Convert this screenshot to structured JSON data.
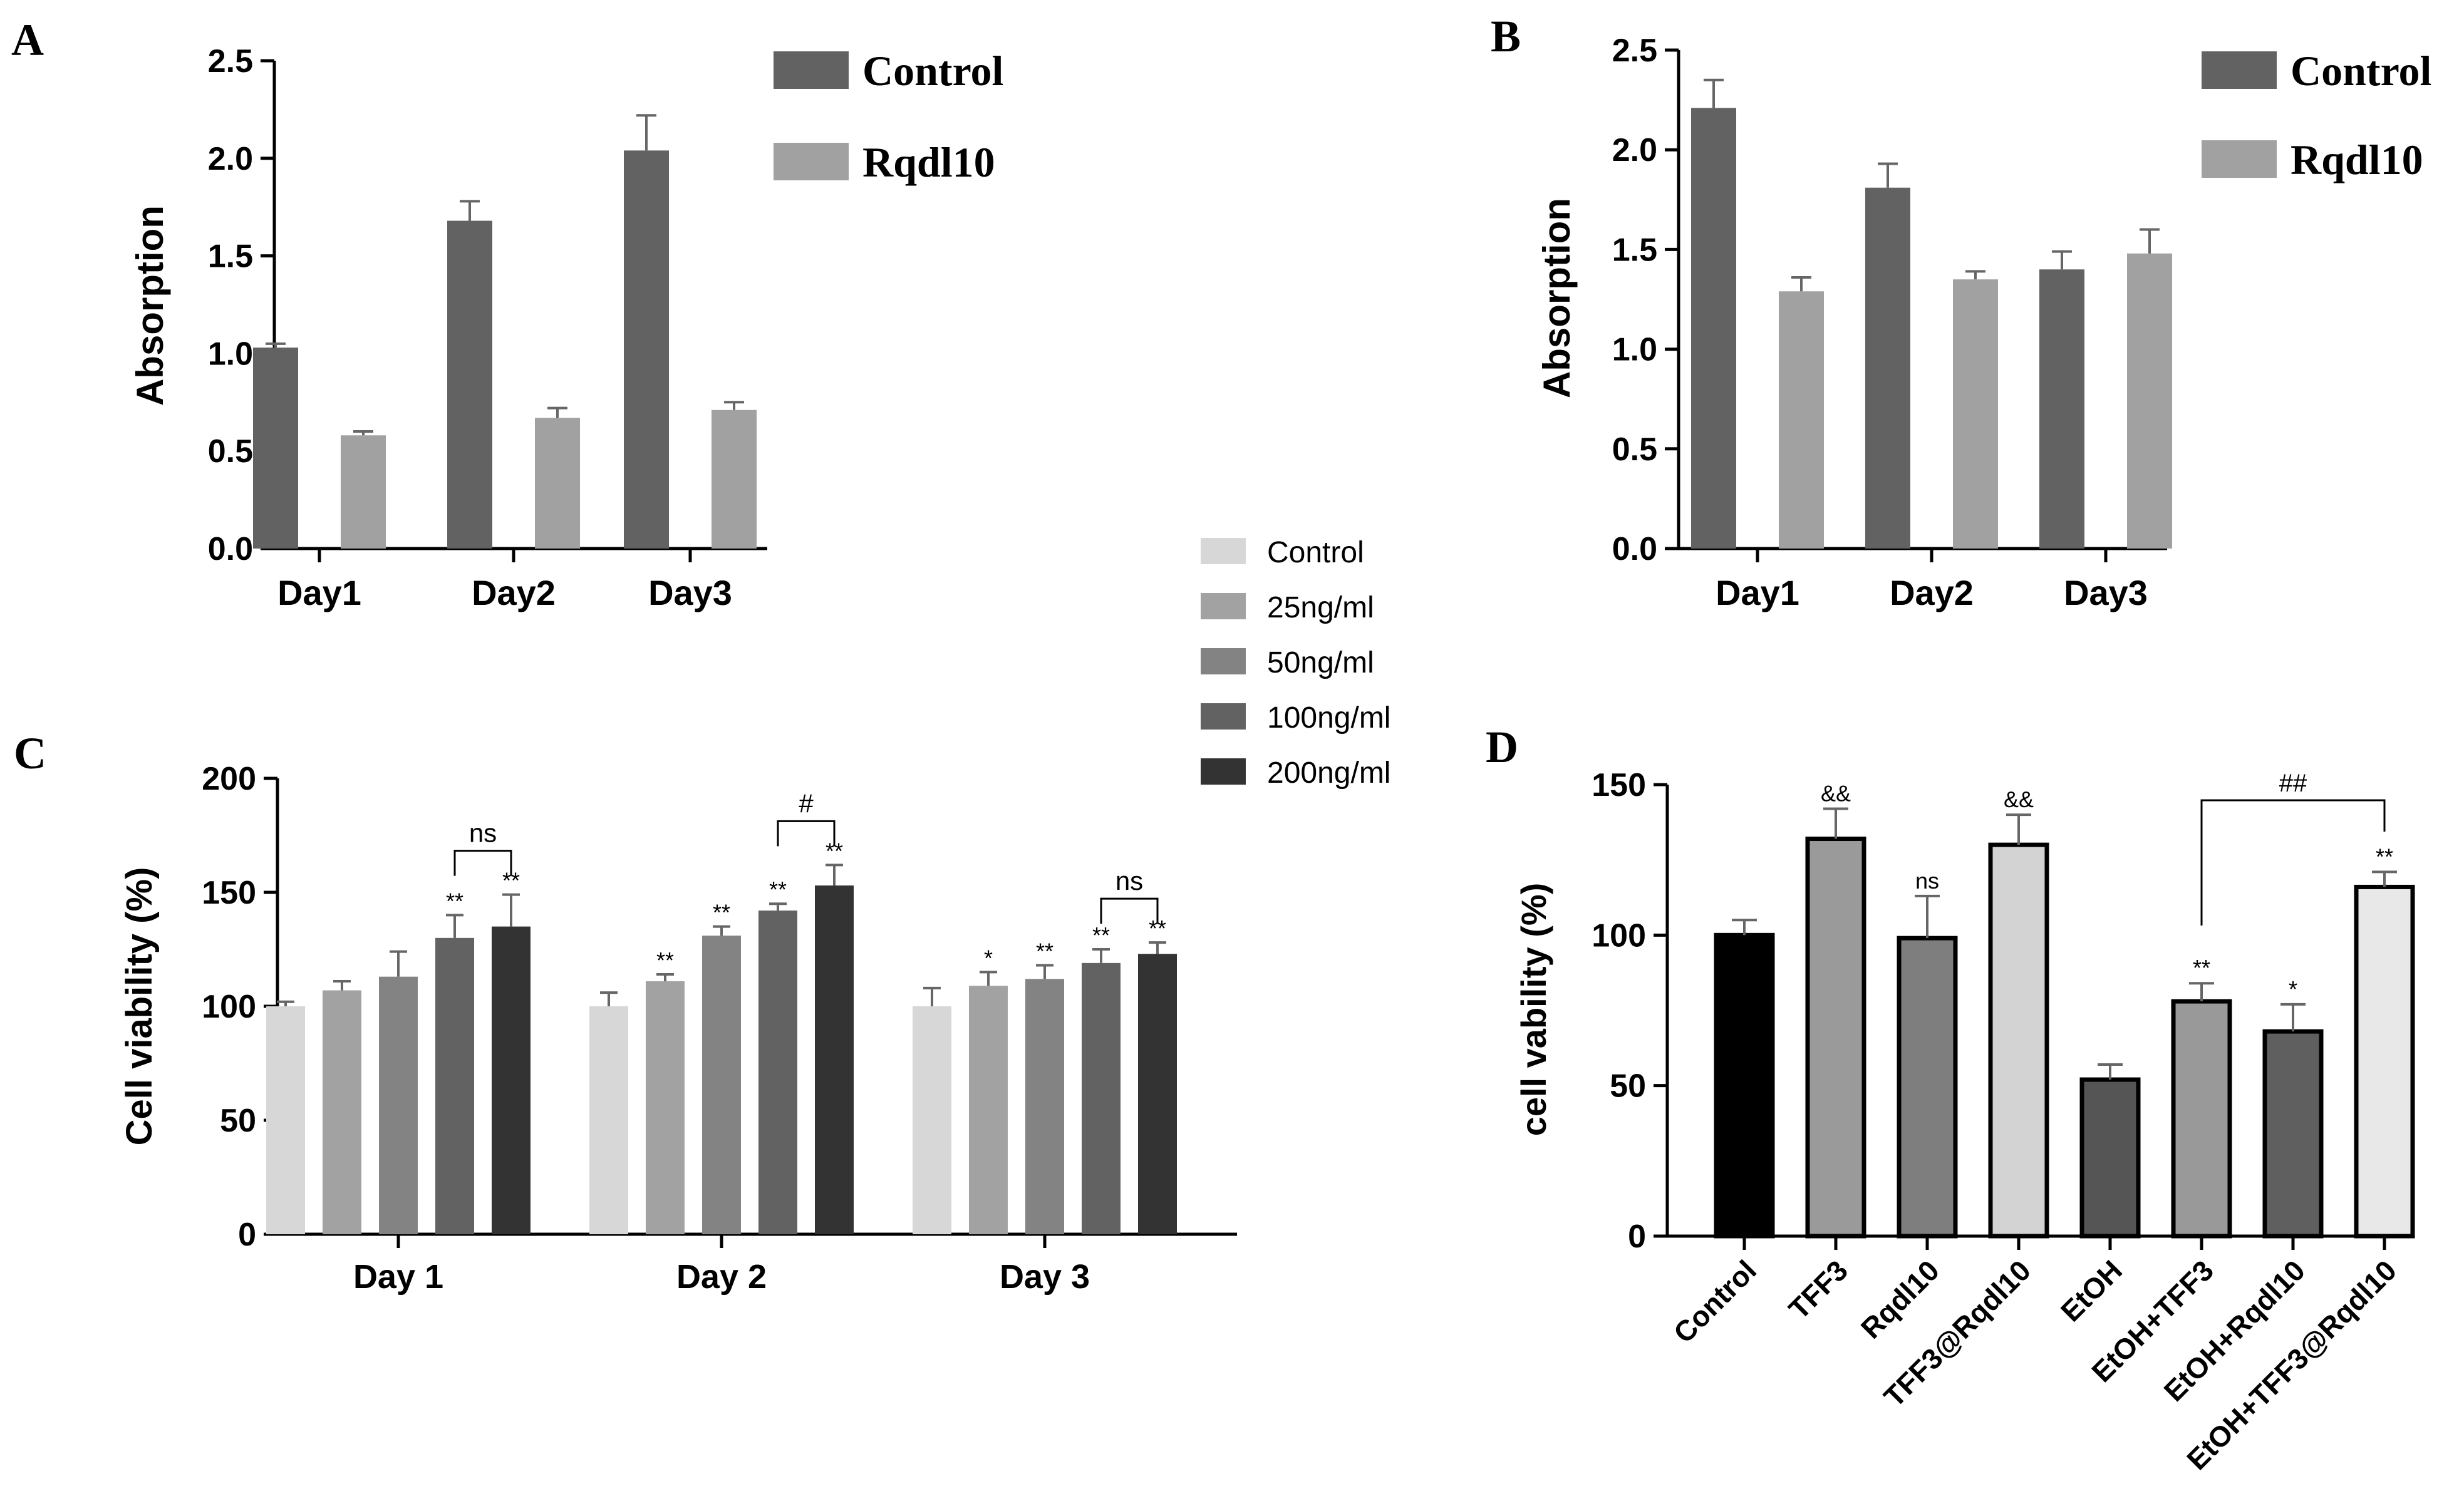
{
  "figure": {
    "panel_labels": [
      "A",
      "B",
      "C",
      "D"
    ]
  },
  "chart_data": [
    {
      "panel": "A",
      "type": "bar",
      "title": "",
      "xlabel": "",
      "ylabel": "Absorption",
      "categories": [
        "Day1",
        "Day2",
        "Day3"
      ],
      "ylim": [
        0,
        2.5
      ],
      "yticks": [
        0.0,
        0.5,
        1.0,
        1.5,
        2.0,
        2.5
      ],
      "ytick_labels": [
        "0.0",
        "0.5",
        "1.0",
        "1.5",
        "2.0",
        "2.5"
      ],
      "series": [
        {
          "name": "Control",
          "color": "#626262",
          "values": [
            1.03,
            1.68,
            2.04
          ],
          "errors": [
            0.02,
            0.1,
            0.18
          ]
        },
        {
          "name": "Rqdl10",
          "color": "#a1a1a1",
          "values": [
            0.58,
            0.67,
            0.71
          ],
          "errors": [
            0.02,
            0.05,
            0.04
          ]
        }
      ],
      "legend": "top-right"
    },
    {
      "panel": "B",
      "type": "bar",
      "title": "",
      "xlabel": "",
      "ylabel": "Absorption",
      "categories": [
        "Day1",
        "Day2",
        "Day3"
      ],
      "ylim": [
        0,
        2.5
      ],
      "yticks": [
        0.0,
        0.5,
        1.0,
        1.5,
        2.0,
        2.5
      ],
      "ytick_labels": [
        "0.0",
        "0.5",
        "1.0",
        "1.5",
        "2.0",
        "2.5"
      ],
      "series": [
        {
          "name": "Control",
          "color": "#626262",
          "values": [
            2.21,
            1.81,
            1.4
          ],
          "errors": [
            0.14,
            0.12,
            0.09
          ]
        },
        {
          "name": "Rqdl10",
          "color": "#a1a1a1",
          "values": [
            1.29,
            1.35,
            1.48
          ],
          "errors": [
            0.07,
            0.04,
            0.12
          ]
        }
      ],
      "legend": "top-right"
    },
    {
      "panel": "C",
      "type": "bar",
      "title": "",
      "xlabel": "",
      "ylabel": "Cell viability (%)",
      "categories": [
        "Day 1",
        "Day 2",
        "Day 3"
      ],
      "ylim": [
        0,
        200
      ],
      "yticks": [
        0,
        50,
        100,
        150,
        200
      ],
      "ytick_labels": [
        "0",
        "50",
        "100",
        "150",
        "200"
      ],
      "series": [
        {
          "name": "Control",
          "color": "#d7d7d7",
          "values": [
            100,
            100,
            100
          ],
          "errors": [
            2,
            6,
            8
          ],
          "annotations": [
            "",
            "",
            ""
          ]
        },
        {
          "name": "25ng/ml",
          "color": "#a2a2a2",
          "values": [
            107,
            111,
            109
          ],
          "errors": [
            4,
            3,
            6
          ],
          "annotations": [
            "",
            "**",
            "*"
          ]
        },
        {
          "name": "50ng/ml",
          "color": "#838383",
          "values": [
            113,
            131,
            112
          ],
          "errors": [
            11,
            4,
            6
          ],
          "annotations": [
            "",
            "**",
            "**"
          ]
        },
        {
          "name": "100ng/ml",
          "color": "#626262",
          "values": [
            130,
            142,
            119
          ],
          "errors": [
            10,
            3,
            6
          ],
          "annotations": [
            "**",
            "**",
            "**"
          ]
        },
        {
          "name": "200ng/ml",
          "color": "#333333",
          "values": [
            135,
            153,
            123
          ],
          "errors": [
            14,
            9,
            5
          ],
          "annotations": [
            "**",
            "**",
            "**"
          ]
        }
      ],
      "brackets": [
        {
          "category_index": 0,
          "from_series": 3,
          "to_series": 4,
          "label": "ns"
        },
        {
          "category_index": 1,
          "from_series": 3,
          "to_series": 4,
          "label": "#"
        },
        {
          "category_index": 2,
          "from_series": 3,
          "to_series": 4,
          "label": "ns"
        }
      ],
      "legend": "top-right (outside)"
    },
    {
      "panel": "D",
      "type": "bar",
      "title": "",
      "xlabel": "",
      "ylabel": "cell vability (%)",
      "categories": [
        "Control",
        "TFF3",
        "Rqdl10",
        "TFF3@Rqdl10",
        "EtOH",
        "EtOH+TFF3",
        "EtOH+Rqdl10",
        "EtOH+TFF3@Rqdl10"
      ],
      "ylim": [
        0,
        150
      ],
      "yticks": [
        0,
        50,
        100,
        150
      ],
      "ytick_labels": [
        "0",
        "50",
        "100",
        "150"
      ],
      "values": [
        100,
        132,
        99,
        130,
        52,
        78,
        68,
        116
      ],
      "errors": [
        5,
        10,
        14,
        10,
        5,
        6,
        9,
        5
      ],
      "colors": [
        "#000000",
        "#9a9a9a",
        "#7e7e7e",
        "#d3d3d3",
        "#555555",
        "#999999",
        "#5f5f5f",
        "#e8e8e8"
      ],
      "annotations": [
        "",
        "&&",
        "ns",
        "&&",
        "",
        "**",
        "*",
        "**"
      ],
      "brackets": [
        {
          "from_index": 5,
          "to_index": 7,
          "label": "##"
        }
      ]
    }
  ]
}
